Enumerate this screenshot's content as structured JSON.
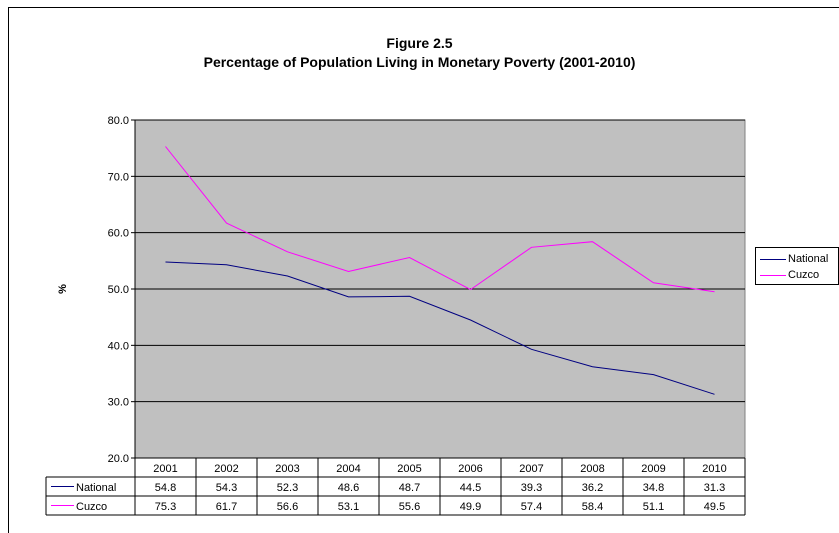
{
  "chart_data": {
    "type": "line",
    "title": "Figure 2.5",
    "subtitle": "Percentage of Population Living in Monetary Poverty (2001-2010)",
    "ylabel": "%",
    "xlabel": "",
    "ylim": [
      20,
      80
    ],
    "yticks": [
      "20.0",
      "30.0",
      "40.0",
      "50.0",
      "60.0",
      "70.0",
      "80.0"
    ],
    "categories": [
      "2001",
      "2002",
      "2003",
      "2004",
      "2005",
      "2006",
      "2007",
      "2008",
      "2009",
      "2010"
    ],
    "grid": true,
    "legend_position": "right",
    "plot_background": "#c0c0c0",
    "series": [
      {
        "name": "National",
        "color": "#000080",
        "values": [
          54.8,
          54.3,
          52.3,
          48.6,
          48.7,
          44.5,
          39.3,
          36.2,
          34.8,
          31.3
        ]
      },
      {
        "name": "Cuzco",
        "color": "#ff00ff",
        "values": [
          75.3,
          61.7,
          56.6,
          53.1,
          55.6,
          49.9,
          57.4,
          58.4,
          51.1,
          49.5
        ]
      }
    ]
  }
}
